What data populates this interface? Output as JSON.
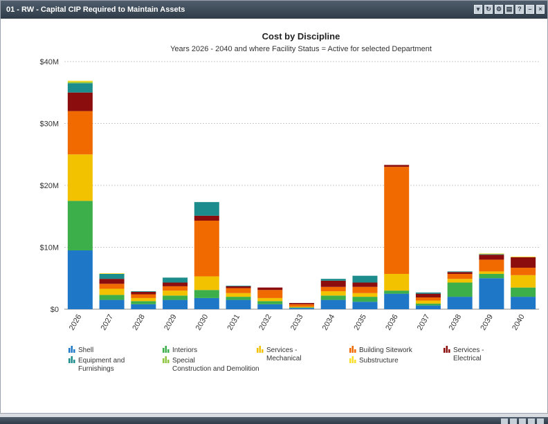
{
  "panel": {
    "title": "01 - RW - Capital CIP Required to Maintain Assets",
    "toolbar_icons": [
      "filter-icon",
      "refresh-icon",
      "settings-icon",
      "export-icon",
      "help-icon",
      "minimize-icon",
      "close-icon"
    ]
  },
  "chart_data": {
    "type": "bar",
    "stacked": true,
    "title": "Cost by Discipline",
    "subtitle": "Years 2026 - 2040 and where Facility Status = Active for selected Department",
    "xlabel": "",
    "ylabel": "",
    "ylim": [
      0,
      40
    ],
    "yticks": [
      {
        "value": 0,
        "label": "$0"
      },
      {
        "value": 10,
        "label": "$10M"
      },
      {
        "value": 20,
        "label": "$20M"
      },
      {
        "value": 30,
        "label": "$30M"
      },
      {
        "value": 40,
        "label": "$40M"
      }
    ],
    "grid": true,
    "legend_position": "bottom",
    "categories": [
      "2026",
      "2027",
      "2028",
      "2029",
      "2030",
      "2031",
      "2032",
      "2033",
      "2034",
      "2035",
      "2036",
      "2037",
      "2038",
      "2039",
      "2040"
    ],
    "series": [
      {
        "name": "Shell",
        "color": "#1f77c8",
        "values": [
          9.5,
          1.5,
          0.8,
          1.5,
          1.8,
          1.5,
          0.8,
          0.2,
          1.5,
          1.2,
          2.5,
          0.6,
          2.0,
          5.0,
          2.0
        ]
      },
      {
        "name": "Interiors",
        "color": "#3cae4a",
        "values": [
          8.0,
          0.8,
          0.5,
          0.7,
          1.3,
          0.5,
          0.5,
          0.1,
          0.7,
          0.8,
          0.5,
          0.3,
          2.3,
          0.7,
          1.5
        ]
      },
      {
        "name": "Services - Mechanical",
        "color": "#f2c200",
        "values": [
          7.5,
          1.0,
          0.5,
          0.8,
          2.2,
          0.6,
          0.5,
          0.1,
          0.7,
          0.6,
          2.7,
          0.5,
          0.6,
          0.4,
          2.0
        ]
      },
      {
        "name": "Building Sitework",
        "color": "#f06a00",
        "values": [
          7.0,
          0.8,
          0.6,
          0.7,
          9.0,
          0.8,
          1.3,
          0.4,
          0.7,
          1.0,
          17.3,
          0.5,
          0.8,
          1.9,
          1.2
        ]
      },
      {
        "name": "Services - Electrical",
        "color": "#8b0d0d",
        "values": [
          3.0,
          0.8,
          0.4,
          0.6,
          0.8,
          0.3,
          0.4,
          0.2,
          1.0,
          0.7,
          0.3,
          0.6,
          0.3,
          0.8,
          1.7
        ]
      },
      {
        "name": "Equipment and Furnishings",
        "color": "#1d8c8c",
        "values": [
          1.5,
          0.8,
          0.1,
          0.8,
          2.2,
          0.1,
          0.0,
          0.0,
          0.3,
          1.1,
          0.0,
          0.2,
          0.1,
          0.1,
          0.0
        ]
      },
      {
        "name": "Special Construction and Demolition",
        "color": "#8fc63f",
        "values": [
          0.2,
          0.0,
          0.0,
          0.0,
          0.0,
          0.0,
          0.0,
          0.0,
          0.0,
          0.0,
          0.0,
          0.0,
          0.0,
          0.0,
          0.0
        ]
      },
      {
        "name": "Substructure",
        "color": "#f9df2a",
        "values": [
          0.2,
          0.1,
          0.0,
          0.0,
          0.0,
          0.0,
          0.0,
          0.0,
          0.0,
          0.0,
          0.0,
          0.0,
          0.0,
          0.1,
          0.1
        ]
      }
    ]
  }
}
